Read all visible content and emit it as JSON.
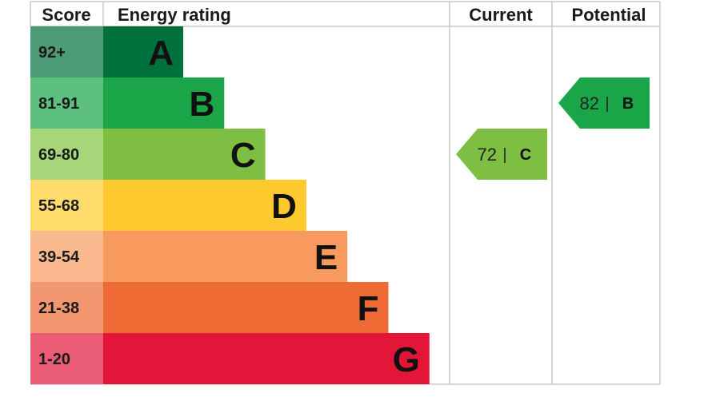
{
  "chart_data": {
    "type": "bar",
    "headers": {
      "score": "Score",
      "rating": "Energy rating",
      "current": "Current",
      "potential": "Potential"
    },
    "bands": [
      {
        "letter": "A",
        "range": "92+",
        "min": 92,
        "color": "#00703c",
        "score_color": "#4c9a76"
      },
      {
        "letter": "B",
        "range": "81-91",
        "min": 81,
        "color": "#19a548",
        "score_color": "#5ec07f"
      },
      {
        "letter": "C",
        "range": "69-80",
        "min": 69,
        "color": "#7ebf43",
        "score_color": "#a6d57a"
      },
      {
        "letter": "D",
        "range": "55-68",
        "min": 55,
        "color": "#fec92e",
        "score_color": "#fedb6b"
      },
      {
        "letter": "E",
        "range": "39-54",
        "min": 39,
        "color": "#f89a5e",
        "score_color": "#fab88f"
      },
      {
        "letter": "F",
        "range": "21-38",
        "min": 21,
        "color": "#ed6a35",
        "score_color": "#f29670"
      },
      {
        "letter": "G",
        "range": "1-20",
        "min": 1,
        "color": "#e3163a",
        "score_color": "#ea5b75"
      }
    ],
    "current": {
      "value": 72,
      "band": "C",
      "color": "#7ebf43"
    },
    "potential": {
      "value": 82,
      "band": "B",
      "color": "#19a548"
    },
    "separator": "|"
  }
}
